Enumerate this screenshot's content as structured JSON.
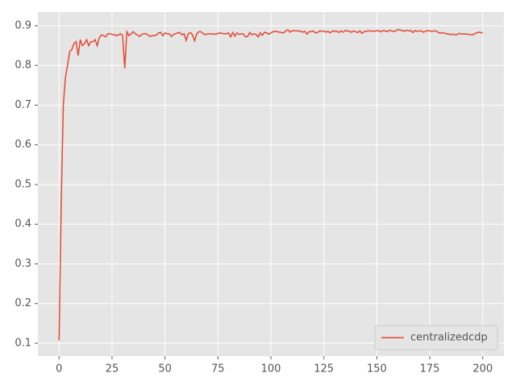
{
  "chart_data": {
    "type": "line",
    "x": [
      0,
      1,
      2,
      3,
      4,
      5,
      6,
      7,
      8,
      9,
      10,
      11,
      12,
      13,
      14,
      15,
      16,
      17,
      18,
      19,
      20,
      21,
      22,
      23,
      24,
      25,
      26,
      27,
      28,
      29,
      30,
      31,
      32,
      33,
      34,
      35,
      36,
      37,
      38,
      39,
      40,
      41,
      42,
      43,
      44,
      45,
      46,
      47,
      48,
      49,
      50,
      51,
      52,
      53,
      54,
      55,
      56,
      57,
      58,
      59,
      60,
      61,
      62,
      63,
      64,
      65,
      66,
      67,
      68,
      69,
      70,
      71,
      72,
      73,
      74,
      75,
      76,
      77,
      78,
      79,
      80,
      81,
      82,
      83,
      84,
      85,
      86,
      87,
      88,
      89,
      90,
      91,
      92,
      93,
      94,
      95,
      96,
      97,
      98,
      99,
      100,
      101,
      102,
      103,
      104,
      105,
      106,
      107,
      108,
      109,
      110,
      111,
      112,
      113,
      114,
      115,
      116,
      117,
      118,
      119,
      120,
      121,
      122,
      123,
      124,
      125,
      126,
      127,
      128,
      129,
      130,
      131,
      132,
      133,
      134,
      135,
      136,
      137,
      138,
      139,
      140,
      141,
      142,
      143,
      144,
      145,
      146,
      147,
      148,
      149,
      150,
      151,
      152,
      153,
      154,
      155,
      156,
      157,
      158,
      159,
      160,
      161,
      162,
      163,
      164,
      165,
      166,
      167,
      168,
      169,
      170,
      171,
      172,
      173,
      174,
      175,
      176,
      177,
      178,
      179,
      180,
      181,
      182,
      183,
      184,
      185,
      186,
      187,
      188,
      189,
      190,
      191,
      192,
      193,
      194,
      195,
      196,
      197,
      198,
      199,
      200
    ],
    "series": [
      {
        "name": "centralizedcdp",
        "color": "#e24a33",
        "values": [
          0.107,
          0.45,
          0.7,
          0.77,
          0.8,
          0.835,
          0.84,
          0.855,
          0.86,
          0.825,
          0.865,
          0.85,
          0.855,
          0.865,
          0.85,
          0.86,
          0.86,
          0.865,
          0.85,
          0.87,
          0.877,
          0.875,
          0.872,
          0.88,
          0.88,
          0.878,
          0.878,
          0.875,
          0.877,
          0.88,
          0.875,
          0.793,
          0.885,
          0.875,
          0.88,
          0.885,
          0.88,
          0.877,
          0.873,
          0.878,
          0.88,
          0.88,
          0.877,
          0.873,
          0.875,
          0.875,
          0.877,
          0.882,
          0.883,
          0.875,
          0.882,
          0.88,
          0.88,
          0.873,
          0.878,
          0.88,
          0.882,
          0.883,
          0.877,
          0.88,
          0.863,
          0.88,
          0.883,
          0.877,
          0.862,
          0.88,
          0.885,
          0.885,
          0.88,
          0.878,
          0.879,
          0.88,
          0.879,
          0.88,
          0.878,
          0.881,
          0.882,
          0.881,
          0.88,
          0.88,
          0.882,
          0.872,
          0.883,
          0.874,
          0.882,
          0.878,
          0.88,
          0.879,
          0.872,
          0.873,
          0.883,
          0.877,
          0.88,
          0.878,
          0.872,
          0.882,
          0.876,
          0.884,
          0.882,
          0.879,
          0.882,
          0.885,
          0.886,
          0.885,
          0.884,
          0.883,
          0.882,
          0.887,
          0.89,
          0.884,
          0.887,
          0.888,
          0.887,
          0.887,
          0.886,
          0.884,
          0.886,
          0.879,
          0.885,
          0.885,
          0.887,
          0.882,
          0.883,
          0.887,
          0.886,
          0.887,
          0.884,
          0.886,
          0.882,
          0.887,
          0.886,
          0.887,
          0.883,
          0.887,
          0.884,
          0.888,
          0.887,
          0.886,
          0.884,
          0.887,
          0.885,
          0.883,
          0.887,
          0.881,
          0.885,
          0.886,
          0.888,
          0.886,
          0.887,
          0.886,
          0.888,
          0.887,
          0.885,
          0.888,
          0.887,
          0.885,
          0.889,
          0.887,
          0.886,
          0.887,
          0.891,
          0.889,
          0.888,
          0.886,
          0.889,
          0.887,
          0.888,
          0.883,
          0.888,
          0.886,
          0.887,
          0.887,
          0.884,
          0.886,
          0.888,
          0.887,
          0.886,
          0.887,
          0.887,
          0.883,
          0.881,
          0.883,
          0.881,
          0.88,
          0.879,
          0.878,
          0.879,
          0.877,
          0.878,
          0.881,
          0.879,
          0.88,
          0.879,
          0.879,
          0.878,
          0.877,
          0.879,
          0.882,
          0.884,
          0.883,
          0.882
        ]
      }
    ],
    "xlim": [
      -10,
      210
    ],
    "ylim": [
      0.0675,
      0.9345
    ],
    "xticks": [
      0,
      25,
      50,
      75,
      100,
      125,
      150,
      175,
      200
    ],
    "yticks": [
      0.1,
      0.2,
      0.3,
      0.4,
      0.5,
      0.6,
      0.7,
      0.8,
      0.9
    ],
    "grid": true,
    "legend": "lower right"
  }
}
